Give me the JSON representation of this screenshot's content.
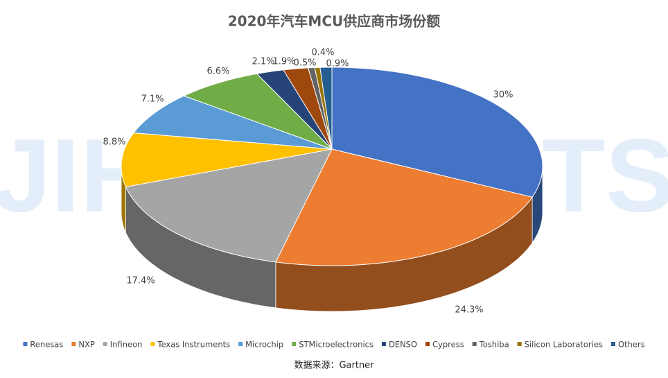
{
  "chart_data": {
    "type": "pie3d",
    "title": "2020年汽车MCU供应商市场份额",
    "source": "数据来源：Gartner",
    "watermark": "JIH INSIGHTS",
    "categories": [
      "Renesas",
      "NXP",
      "Infineon",
      "Texas Instruments",
      "Microchip",
      "STMicroelectronics",
      "DENSO",
      "Cypress",
      "Toshiba",
      "Silicon Laboratories",
      "Others"
    ],
    "values": [
      30,
      24.3,
      17.4,
      8.8,
      7.1,
      6.6,
      2.1,
      1.9,
      0.5,
      0.4,
      0.9
    ],
    "value_labels": [
      "30%",
      "24.3%",
      "17.4%",
      "8.8%",
      "7.1%",
      "6.6%",
      "2.1%",
      "1.9%",
      "0.5%",
      "0.4%",
      "0.9%"
    ],
    "colors": [
      "#4472c4",
      "#ed7d31",
      "#a5a5a5",
      "#ffc000",
      "#5b9bd5",
      "#70ad47",
      "#264478",
      "#9e480e",
      "#636363",
      "#997300",
      "#255e91"
    ],
    "legend": "bottom"
  }
}
